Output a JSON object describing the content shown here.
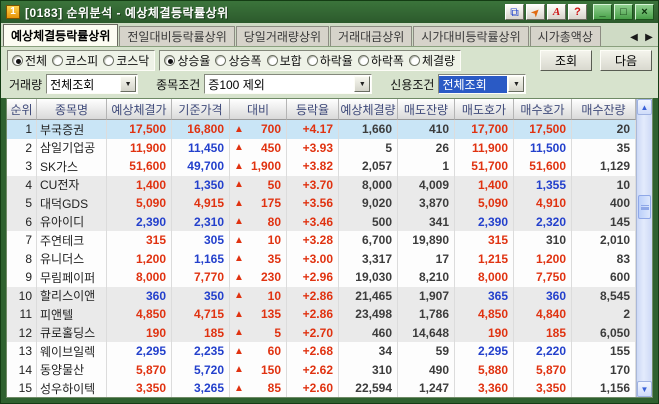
{
  "window": {
    "badge": "1",
    "title": "[0183] 순위분석 - 예상체결등락률상위",
    "tools": [
      {
        "name": "copy-window-icon",
        "glyph": "⧉"
      },
      {
        "name": "pin-icon",
        "glyph": "➤"
      },
      {
        "name": "font-icon",
        "glyph": "A"
      },
      {
        "name": "help-icon",
        "glyph": "?"
      }
    ],
    "win_buttons": [
      {
        "name": "minimize-button",
        "glyph": "_"
      },
      {
        "name": "maximize-button",
        "glyph": "□"
      },
      {
        "name": "close-button",
        "glyph": "×"
      }
    ]
  },
  "tabs": {
    "items": [
      {
        "label": "예상체결등락률상위",
        "active": true
      },
      {
        "label": "전일대비등락률상위",
        "active": false
      },
      {
        "label": "당일거래량상위",
        "active": false
      },
      {
        "label": "거래대금상위",
        "active": false
      },
      {
        "label": "시가대비등락률상위",
        "active": false
      },
      {
        "label": "시가총액상",
        "active": false
      }
    ],
    "scroll_left": "◀",
    "scroll_right": "▶"
  },
  "controls": {
    "market_radios": [
      {
        "label": "전체",
        "selected": true
      },
      {
        "label": "코스피",
        "selected": false
      },
      {
        "label": "코스닥",
        "selected": false
      }
    ],
    "sort_radios": [
      {
        "label": "상승율",
        "selected": true
      },
      {
        "label": "상승폭",
        "selected": false
      },
      {
        "label": "보합",
        "selected": false
      },
      {
        "label": "하락율",
        "selected": false
      },
      {
        "label": "하락폭",
        "selected": false
      },
      {
        "label": "체결량",
        "selected": false
      }
    ],
    "query_button": "조회",
    "next_button": "다음"
  },
  "filters": {
    "volume": {
      "label": "거래량",
      "value": "전체조회",
      "highlighted": false
    },
    "stock_condition": {
      "label": "종목조건",
      "value": "증100 제외",
      "highlighted": false
    },
    "credit_condition": {
      "label": "신용조건",
      "value": "전체조회",
      "highlighted": true
    }
  },
  "table": {
    "columns": [
      "순위",
      "종목명",
      "예상체결가",
      "기준가격",
      "대비",
      "등락율",
      "예상체결량",
      "매도잔량",
      "매도호가",
      "매수호가",
      "매수잔량"
    ],
    "rows": [
      {
        "rank": "1",
        "name": "부국증권",
        "ep": "17,500",
        "ep_c": "up",
        "bp": "16,800",
        "bp_c": "up",
        "arrow": "▲",
        "chg": "700",
        "rate": "+4.17",
        "vol": "1,660",
        "askv": "410",
        "ask": "17,700",
        "ask_c": "up",
        "bid": "17,500",
        "bid_c": "up",
        "bidv": "20",
        "selected": true
      },
      {
        "rank": "2",
        "name": "삼일기업공",
        "ep": "11,900",
        "ep_c": "up",
        "bp": "11,450",
        "bp_c": "down",
        "arrow": "▲",
        "chg": "450",
        "rate": "+3.93",
        "vol": "5",
        "askv": "26",
        "ask": "11,900",
        "ask_c": "up",
        "bid": "11,500",
        "bid_c": "down",
        "bidv": "35"
      },
      {
        "rank": "3",
        "name": "SK가스",
        "ep": "51,600",
        "ep_c": "up",
        "bp": "49,700",
        "bp_c": "down",
        "arrow": "▲",
        "chg": "1,900",
        "rate": "+3.82",
        "vol": "2,057",
        "askv": "1",
        "ask": "51,700",
        "ask_c": "up",
        "bid": "51,600",
        "bid_c": "up",
        "bidv": "1,129"
      },
      {
        "rank": "4",
        "name": "CU전자",
        "ep": "1,400",
        "ep_c": "up",
        "bp": "1,350",
        "bp_c": "down",
        "arrow": "▲",
        "chg": "50",
        "rate": "+3.70",
        "vol": "8,000",
        "askv": "4,009",
        "ask": "1,400",
        "ask_c": "up",
        "bid": "1,355",
        "bid_c": "down",
        "bidv": "10"
      },
      {
        "rank": "5",
        "name": "대덕GDS",
        "ep": "5,090",
        "ep_c": "up",
        "bp": "4,915",
        "bp_c": "up",
        "arrow": "▲",
        "chg": "175",
        "rate": "+3.56",
        "vol": "9,020",
        "askv": "3,870",
        "ask": "5,090",
        "ask_c": "up",
        "bid": "4,910",
        "bid_c": "up",
        "bidv": "400"
      },
      {
        "rank": "6",
        "name": "유아이디",
        "ep": "2,390",
        "ep_c": "down",
        "bp": "2,310",
        "bp_c": "down",
        "arrow": "▲",
        "chg": "80",
        "rate": "+3.46",
        "vol": "500",
        "askv": "341",
        "ask": "2,390",
        "ask_c": "down",
        "bid": "2,320",
        "bid_c": "down",
        "bidv": "145"
      },
      {
        "rank": "7",
        "name": "주연테크",
        "ep": "315",
        "ep_c": "up",
        "bp": "305",
        "bp_c": "down",
        "arrow": "▲",
        "chg": "10",
        "rate": "+3.28",
        "vol": "6,700",
        "askv": "19,890",
        "ask": "315",
        "ask_c": "up",
        "bid": "310",
        "bid_c": "flat",
        "bidv": "2,010"
      },
      {
        "rank": "8",
        "name": "유니더스",
        "ep": "1,200",
        "ep_c": "up",
        "bp": "1,165",
        "bp_c": "down",
        "arrow": "▲",
        "chg": "35",
        "rate": "+3.00",
        "vol": "3,317",
        "askv": "17",
        "ask": "1,215",
        "ask_c": "up",
        "bid": "1,200",
        "bid_c": "up",
        "bidv": "83"
      },
      {
        "rank": "9",
        "name": "무림페이퍼",
        "ep": "8,000",
        "ep_c": "up",
        "bp": "7,770",
        "bp_c": "up",
        "arrow": "▲",
        "chg": "230",
        "rate": "+2.96",
        "vol": "19,030",
        "askv": "8,210",
        "ask": "8,000",
        "ask_c": "up",
        "bid": "7,750",
        "bid_c": "up",
        "bidv": "600"
      },
      {
        "rank": "10",
        "name": "할리스이앤",
        "ep": "360",
        "ep_c": "down",
        "bp": "350",
        "bp_c": "down",
        "arrow": "▲",
        "chg": "10",
        "rate": "+2.86",
        "vol": "21,465",
        "askv": "1,907",
        "ask": "365",
        "ask_c": "down",
        "bid": "360",
        "bid_c": "down",
        "bidv": "8,545"
      },
      {
        "rank": "11",
        "name": "피앤텔",
        "ep": "4,850",
        "ep_c": "up",
        "bp": "4,715",
        "bp_c": "up",
        "arrow": "▲",
        "chg": "135",
        "rate": "+2.86",
        "vol": "23,498",
        "askv": "1,786",
        "ask": "4,850",
        "ask_c": "up",
        "bid": "4,840",
        "bid_c": "up",
        "bidv": "2"
      },
      {
        "rank": "12",
        "name": "큐로홀딩스",
        "ep": "190",
        "ep_c": "up",
        "bp": "185",
        "bp_c": "up",
        "arrow": "▲",
        "chg": "5",
        "rate": "+2.70",
        "vol": "460",
        "askv": "14,648",
        "ask": "190",
        "ask_c": "up",
        "bid": "185",
        "bid_c": "up",
        "bidv": "6,050"
      },
      {
        "rank": "13",
        "name": "웨이브일렉",
        "ep": "2,295",
        "ep_c": "down",
        "bp": "2,235",
        "bp_c": "down",
        "arrow": "▲",
        "chg": "60",
        "rate": "+2.68",
        "vol": "34",
        "askv": "59",
        "ask": "2,295",
        "ask_c": "down",
        "bid": "2,220",
        "bid_c": "down",
        "bidv": "155"
      },
      {
        "rank": "14",
        "name": "동양물산",
        "ep": "5,870",
        "ep_c": "up",
        "bp": "5,720",
        "bp_c": "down",
        "arrow": "▲",
        "chg": "150",
        "rate": "+2.62",
        "vol": "310",
        "askv": "490",
        "ask": "5,880",
        "ask_c": "up",
        "bid": "5,870",
        "bid_c": "up",
        "bidv": "170"
      },
      {
        "rank": "15",
        "name": "성우하이텍",
        "ep": "3,350",
        "ep_c": "up",
        "bp": "3,265",
        "bp_c": "down",
        "arrow": "▲",
        "chg": "85",
        "rate": "+2.60",
        "vol": "22,594",
        "askv": "1,247",
        "ask": "3,360",
        "ask_c": "up",
        "bid": "3,350",
        "bid_c": "up",
        "bidv": "1,156"
      }
    ]
  },
  "scrollbar": {
    "up_glyph": "▲",
    "down_glyph": "▼"
  },
  "colors": {
    "up": "#e03210",
    "down": "#2340cc",
    "flat": "#3c3c3c",
    "selected_row": "#c9e5f6"
  }
}
